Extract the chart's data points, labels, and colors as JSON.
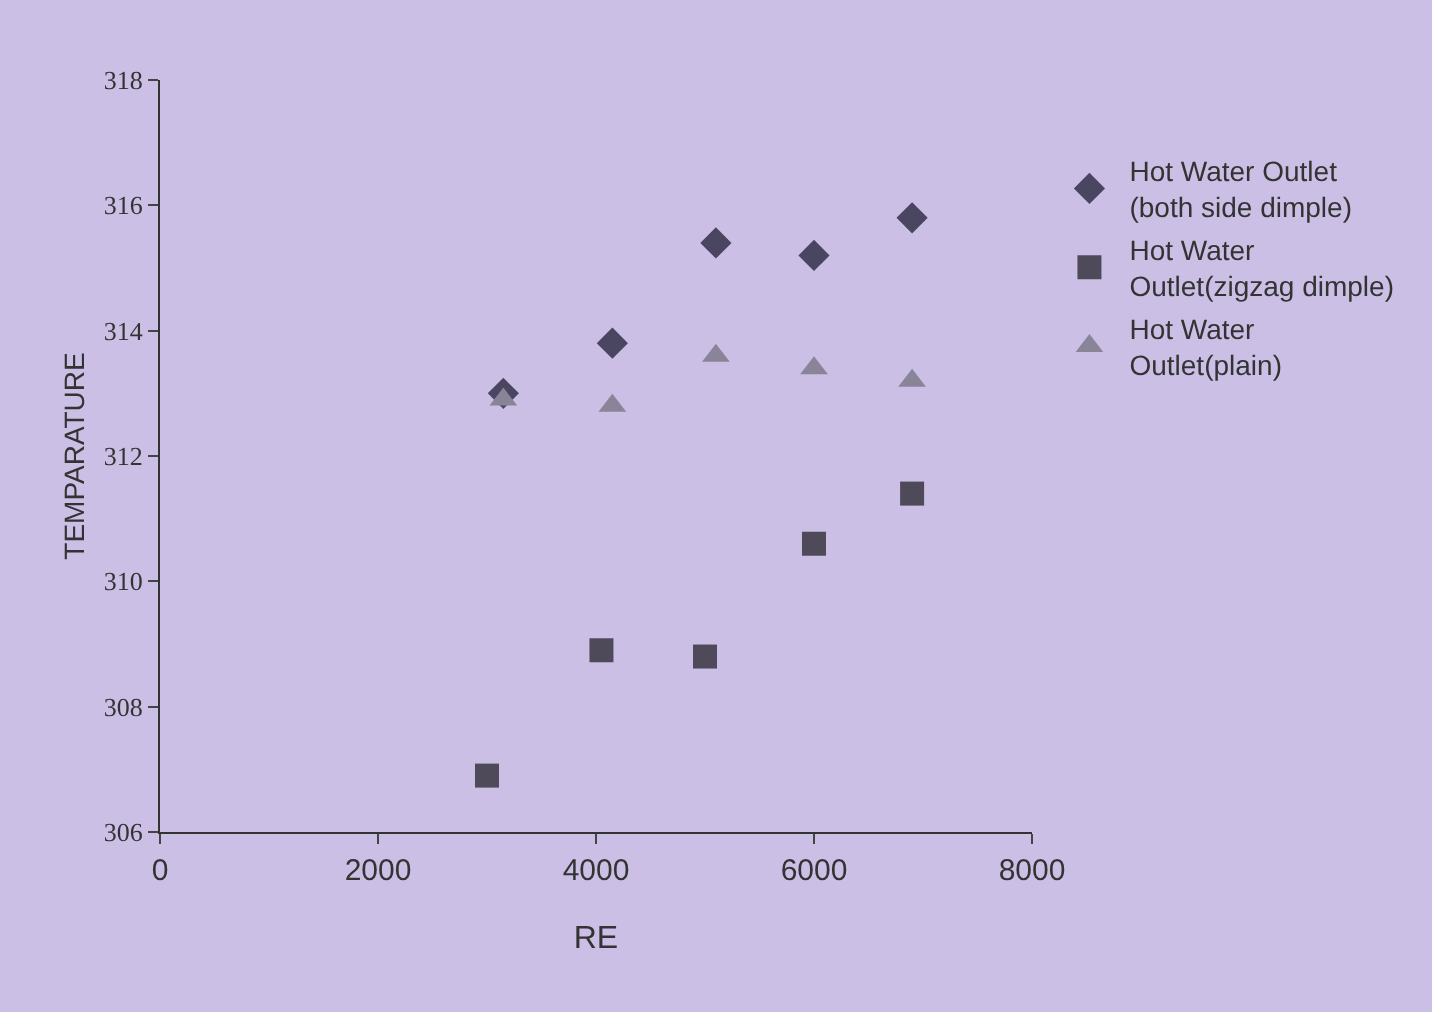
{
  "chart_data": {
    "type": "scatter",
    "xlabel": "RE",
    "ylabel": "TEMPARATURE",
    "series": [
      {
        "name": "Hot Water Outlet (both side dimple)",
        "color": "#4a4560",
        "marker": "diamond",
        "x": [
          3150,
          4150,
          5100,
          6000,
          6900
        ],
        "values": [
          313.0,
          313.8,
          315.4,
          315.2,
          315.8
        ]
      },
      {
        "name": "Hot Water Outlet(zigzag dimple)",
        "color": "#4f4a5a",
        "marker": "square",
        "x": [
          3000,
          4050,
          5000,
          6000,
          6900
        ],
        "values": [
          306.9,
          308.9,
          308.8,
          310.6,
          311.4
        ]
      },
      {
        "name": "Hot Water Outlet(plain)",
        "color": "#8a8498",
        "marker": "triangle",
        "x": [
          3150,
          4150,
          5100,
          6000,
          6900
        ],
        "values": [
          312.9,
          312.8,
          313.6,
          313.4,
          313.2
        ]
      }
    ],
    "xlim": [
      0,
      8000
    ],
    "xticks": [
      0,
      2000,
      4000,
      6000,
      8000
    ],
    "ylim": [
      306,
      318
    ],
    "yticks": [
      306,
      308,
      310,
      312,
      314,
      316,
      318
    ],
    "grid": false,
    "legend": "right"
  }
}
